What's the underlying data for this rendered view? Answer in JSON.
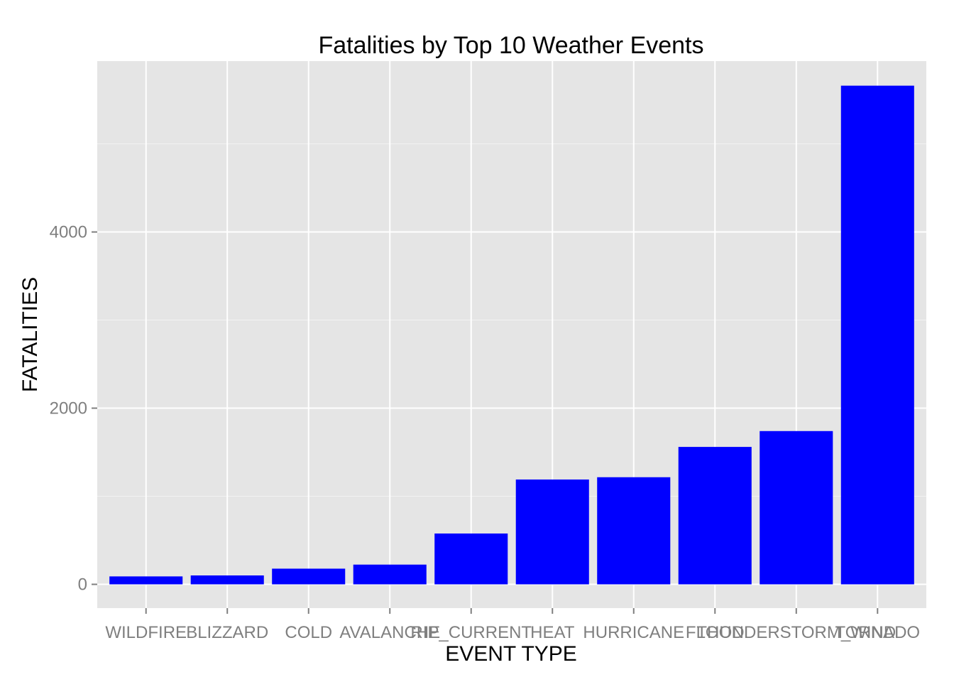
{
  "chart_data": {
    "type": "bar",
    "title": "Fatalities by Top 10 Weather Events",
    "xlabel": "EVENT TYPE",
    "ylabel": "FATALITIES",
    "categories": [
      "WILDFIRE",
      "BLIZZARD",
      "COLD",
      "AVALANCHE",
      "RIP_CURRENT",
      "HEAT",
      "HURRICANE",
      "FLOOD",
      "THUNDERSTORM_WIND",
      "TORNADO"
    ],
    "values": [
      90,
      101,
      178,
      224,
      577,
      1190,
      1216,
      1560,
      1740,
      5661
    ],
    "ylim": [
      -270,
      5940
    ],
    "yticks": [
      0,
      2000,
      4000
    ],
    "y_minor_ticks": [
      1000,
      3000,
      5000
    ],
    "grid": true,
    "legend": "none",
    "colors": {
      "bar": "#0000ff",
      "panel": "#e5e5e5",
      "grid_major": "#ffffff",
      "grid_minor": "#f2f2f2",
      "tick_text": "#7f7f7f"
    }
  }
}
